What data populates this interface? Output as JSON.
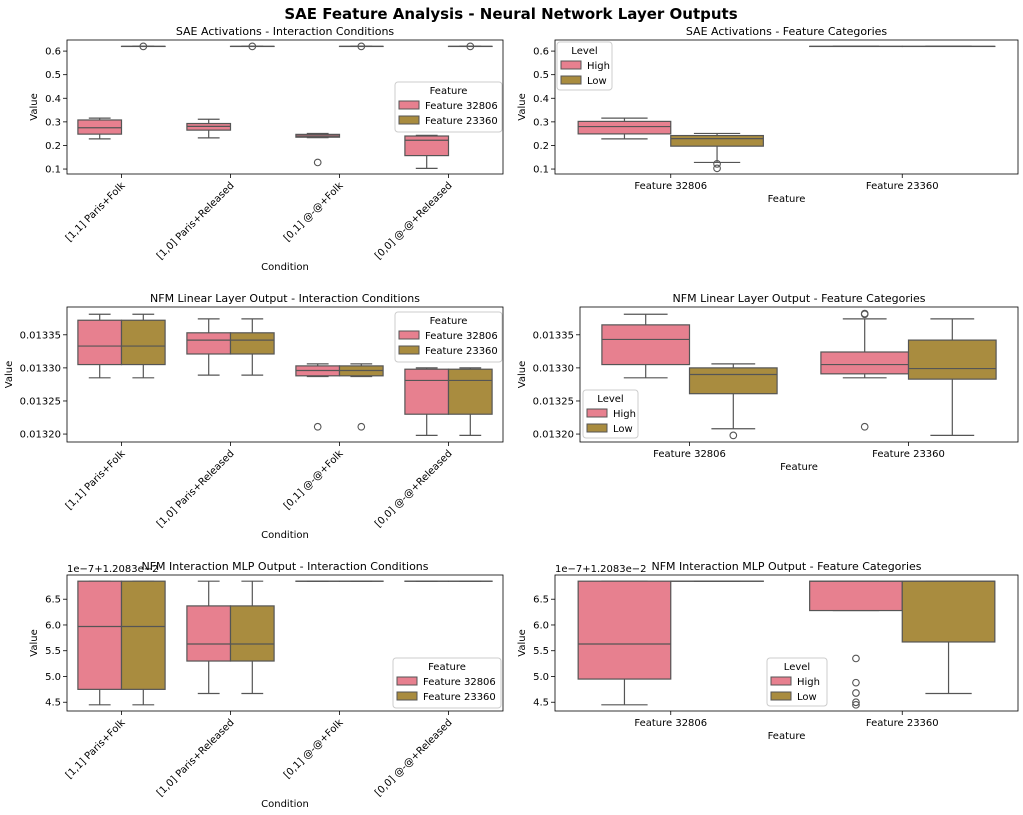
{
  "suptitle": "SAE Feature Analysis - Neural Network Layer Outputs",
  "colors": {
    "feature_32806_high": "#e7808f",
    "feature_23360_low": "#a98c3f",
    "box_edge": "#555555"
  },
  "box_stats_order": [
    "whisker_low",
    "q1",
    "median",
    "q3",
    "whisker_high",
    "outliers"
  ],
  "chart_data": [
    {
      "type": "box",
      "title": "SAE Activations - Interaction Conditions",
      "xlabel": "Condition",
      "ylabel": "Value",
      "categories": [
        "[1,1] Paris+Folk",
        "[1,0] Paris+Released",
        "[0,1] @-@+Folk",
        "[0,0] @-@+Released"
      ],
      "rotate_xticks": true,
      "ylim": [
        0.079,
        0.647
      ],
      "yticks": [
        0.1,
        0.2,
        0.3,
        0.4,
        0.5,
        0.6
      ],
      "ytick_labels": [
        "0.1",
        "0.2",
        "0.3",
        "0.4",
        "0.5",
        "0.6"
      ],
      "offset_text": "",
      "legend": {
        "title": "Feature",
        "placement": "center-right"
      },
      "series": [
        {
          "name": "Feature 32806",
          "boxes": [
            [
              0.228,
              0.248,
              0.275,
              0.308,
              0.316,
              []
            ],
            [
              0.232,
              0.265,
              0.281,
              0.293,
              0.311,
              []
            ],
            [
              0.233,
              0.235,
              0.24,
              0.247,
              0.251,
              [
                0.128
              ]
            ],
            [
              0.103,
              0.157,
              0.222,
              0.24,
              0.243,
              []
            ]
          ]
        },
        {
          "name": "Feature 23360",
          "boxes": [
            [
              0.62,
              0.62,
              0.62,
              0.62,
              0.62,
              [
                0.62
              ]
            ],
            [
              0.62,
              0.62,
              0.62,
              0.62,
              0.62,
              [
                0.62
              ]
            ],
            [
              0.62,
              0.62,
              0.62,
              0.62,
              0.62,
              [
                0.62
              ]
            ],
            [
              0.62,
              0.62,
              0.62,
              0.62,
              0.62,
              [
                0.62
              ]
            ]
          ]
        }
      ]
    },
    {
      "type": "box",
      "title": "SAE Activations - Feature Categories",
      "xlabel": "Feature",
      "ylabel": "Value",
      "categories": [
        "Feature 32806",
        "Feature 23360"
      ],
      "rotate_xticks": false,
      "ylim": [
        0.079,
        0.647
      ],
      "yticks": [
        0.1,
        0.2,
        0.3,
        0.4,
        0.5,
        0.6
      ],
      "ytick_labels": [
        "0.1",
        "0.2",
        "0.3",
        "0.4",
        "0.5",
        "0.6"
      ],
      "offset_text": "",
      "legend": {
        "title": "Level",
        "placement": "upper-left"
      },
      "series": [
        {
          "name": "High",
          "boxes": [
            [
              0.228,
              0.249,
              0.28,
              0.302,
              0.316,
              []
            ],
            [
              0.62,
              0.62,
              0.62,
              0.62,
              0.62,
              []
            ]
          ]
        },
        {
          "name": "Low",
          "boxes": [
            [
              0.128,
              0.197,
              0.229,
              0.242,
              0.251,
              [
                0.103,
                0.122
              ]
            ],
            [
              0.62,
              0.62,
              0.62,
              0.62,
              0.62,
              []
            ]
          ]
        }
      ]
    },
    {
      "type": "box",
      "title": "NFM Linear Layer Output - Interaction Conditions",
      "xlabel": "Condition",
      "ylabel": "Value",
      "categories": [
        "[1,1] Paris+Folk",
        "[1,0] Paris+Released",
        "[0,1] @-@+Folk",
        "[0,0] @-@+Released"
      ],
      "rotate_xticks": true,
      "ylim": [
        0.013188,
        0.013392
      ],
      "yticks": [
        0.0132,
        0.01325,
        0.0133,
        0.01335
      ],
      "ytick_labels": [
        "0.01320",
        "0.01325",
        "0.01330",
        "0.01335"
      ],
      "offset_text": "",
      "legend": {
        "title": "Feature",
        "placement": "upper-right"
      },
      "series": [
        {
          "name": "Feature 32806",
          "boxes": [
            [
              0.013285,
              0.013305,
              0.013333,
              0.013372,
              0.013381,
              []
            ],
            [
              0.013289,
              0.013321,
              0.013342,
              0.013353,
              0.013374,
              []
            ],
            [
              0.013287,
              0.013288,
              0.013296,
              0.013303,
              0.013306,
              [
                0.013211
              ]
            ],
            [
              0.013198,
              0.01323,
              0.013281,
              0.013298,
              0.0133,
              []
            ]
          ]
        },
        {
          "name": "Feature 23360",
          "boxes": [
            [
              0.013285,
              0.013305,
              0.013333,
              0.013372,
              0.013381,
              []
            ],
            [
              0.013289,
              0.013321,
              0.013342,
              0.013353,
              0.013374,
              []
            ],
            [
              0.013287,
              0.013288,
              0.013296,
              0.013303,
              0.013306,
              [
                0.013211
              ]
            ],
            [
              0.013198,
              0.01323,
              0.013281,
              0.013298,
              0.0133,
              []
            ]
          ]
        }
      ]
    },
    {
      "type": "box",
      "title": "NFM Linear Layer Output - Feature Categories",
      "xlabel": "Feature",
      "ylabel": "Value",
      "categories": [
        "Feature 32806",
        "Feature 23360"
      ],
      "rotate_xticks": false,
      "ylim": [
        0.013188,
        0.013392
      ],
      "yticks": [
        0.0132,
        0.01325,
        0.0133,
        0.01335
      ],
      "ytick_labels": [
        "0.01320",
        "0.01325",
        "0.01330",
        "0.01335"
      ],
      "offset_text": "",
      "legend": {
        "title": "Level",
        "placement": "lower-left"
      },
      "series": [
        {
          "name": "High",
          "boxes": [
            [
              0.013285,
              0.013305,
              0.013343,
              0.013365,
              0.013381,
              []
            ],
            [
              0.013285,
              0.013291,
              0.013305,
              0.013324,
              0.013374,
              [
                0.013211,
                0.013381,
                0.013382
              ]
            ]
          ]
        },
        {
          "name": "Low",
          "boxes": [
            [
              0.013208,
              0.013261,
              0.01329,
              0.0133,
              0.013306,
              [
                0.013198
              ]
            ],
            [
              0.013198,
              0.013283,
              0.013299,
              0.013342,
              0.013374,
              []
            ]
          ]
        }
      ]
    },
    {
      "type": "box",
      "title": "NFM Interaction MLP Output - Interaction Conditions",
      "xlabel": "Condition",
      "ylabel": "Value",
      "categories": [
        "[1,1] Paris+Folk",
        "[1,0] Paris+Released",
        "[0,1] @-@+Folk",
        "[0,0] @-@+Released"
      ],
      "rotate_xticks": true,
      "ylim": [
        4.33,
        6.97
      ],
      "yticks": [
        4.5,
        5.0,
        5.5,
        6.0,
        6.5
      ],
      "ytick_labels": [
        "4.5",
        "5.0",
        "5.5",
        "6.0",
        "6.5"
      ],
      "offset_text": "1e−7+1.2083e−2",
      "legend": {
        "title": "Feature",
        "placement": "lower-right"
      },
      "series": [
        {
          "name": "Feature 32806",
          "boxes": [
            [
              4.45,
              4.75,
              5.97,
              6.85,
              6.85,
              []
            ],
            [
              4.67,
              5.3,
              5.63,
              6.37,
              6.85,
              []
            ],
            [
              6.85,
              6.85,
              6.85,
              6.85,
              6.85,
              []
            ],
            [
              6.85,
              6.85,
              6.85,
              6.85,
              6.85,
              []
            ]
          ]
        },
        {
          "name": "Feature 23360",
          "boxes": [
            [
              4.45,
              4.75,
              5.97,
              6.85,
              6.85,
              []
            ],
            [
              4.67,
              5.3,
              5.63,
              6.37,
              6.85,
              []
            ],
            [
              6.85,
              6.85,
              6.85,
              6.85,
              6.85,
              []
            ],
            [
              6.85,
              6.85,
              6.85,
              6.85,
              6.85,
              []
            ]
          ]
        }
      ]
    },
    {
      "type": "box",
      "title": "NFM Interaction MLP Output - Feature Categories",
      "xlabel": "Feature",
      "ylabel": "Value",
      "categories": [
        "Feature 32806",
        "Feature 23360"
      ],
      "rotate_xticks": false,
      "ylim": [
        4.33,
        6.97
      ],
      "yticks": [
        4.5,
        5.0,
        5.5,
        6.0,
        6.5
      ],
      "ytick_labels": [
        "4.5",
        "5.0",
        "5.5",
        "6.0",
        "6.5"
      ],
      "offset_text": "1e−7+1.2083e−2",
      "legend": {
        "title": "Level",
        "placement": "lower-center"
      },
      "series": [
        {
          "name": "High",
          "boxes": [
            [
              4.45,
              4.95,
              5.63,
              6.85,
              6.85,
              []
            ],
            [
              6.28,
              6.28,
              6.85,
              6.85,
              6.85,
              [
                5.35,
                4.88,
                4.68,
                4.5,
                4.45
              ]
            ]
          ]
        },
        {
          "name": "Low",
          "boxes": [
            [
              6.85,
              6.85,
              6.85,
              6.85,
              6.85,
              []
            ],
            [
              4.67,
              5.67,
              6.85,
              6.85,
              6.85,
              []
            ]
          ]
        }
      ]
    }
  ]
}
